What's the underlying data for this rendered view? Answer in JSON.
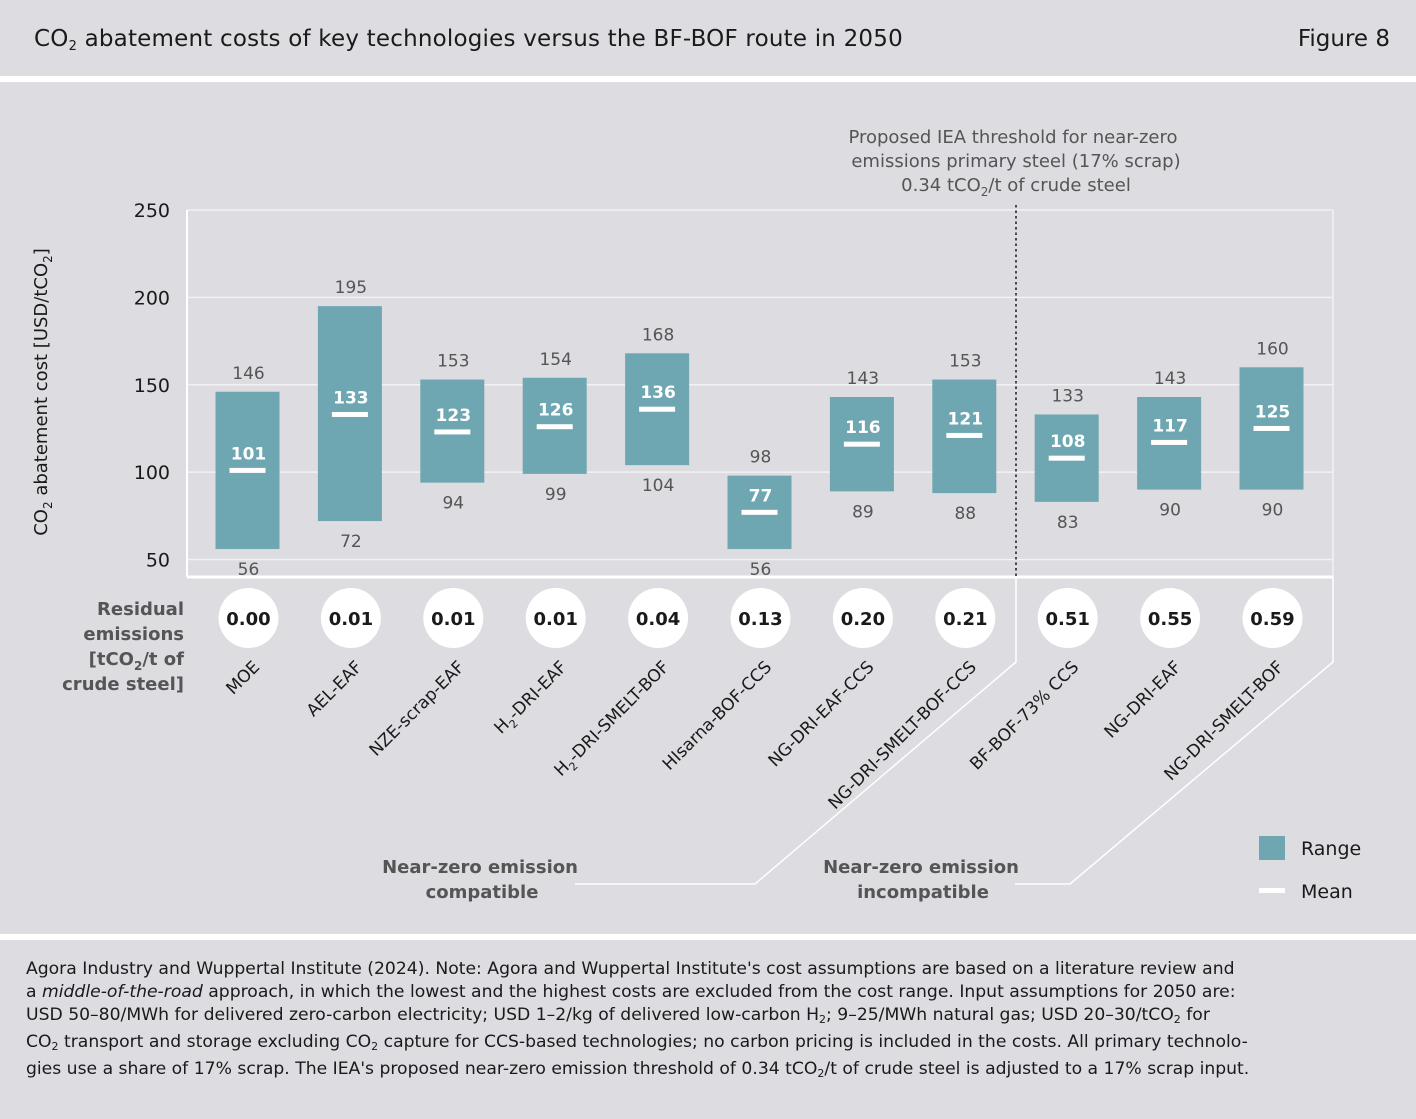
{
  "header": {
    "title_pre": "CO",
    "title_sub": "2",
    "title_post": " abatement costs of key technologies versus the BF-BOF route in 2050",
    "figure_label": "Figure 8"
  },
  "chart_data": {
    "type": "bar",
    "ylabel_pre": "CO",
    "ylabel_sub": "2",
    "ylabel_post": " abatement cost [USD/tCO",
    "ylabel_sub2": "2",
    "ylabel_end": "]",
    "ylim": [
      40,
      250
    ],
    "yticks": [
      50,
      100,
      150,
      200,
      250
    ],
    "grid": true,
    "categories": [
      "MOE",
      "AEL-EAF",
      "NZE-scrap-EAF",
      "H2-DRI-EAF",
      "H2-DRI-SMELT-BOF",
      "HIsarna-BOF-CCS",
      "NG-DRI-EAF-CCS",
      "NG-DRI-SMELT-BOF-CCS",
      "BF-BOF-73% CCS",
      "NG-DRI-EAF",
      "NG-DRI-SMELT-BOF"
    ],
    "category_labels": [
      {
        "pre": "MOE",
        "sub": "",
        "post": ""
      },
      {
        "pre": "AEL-EAF",
        "sub": "",
        "post": ""
      },
      {
        "pre": "NZE-scrap-EAF",
        "sub": "",
        "post": ""
      },
      {
        "pre": "H",
        "sub": "2",
        "post": "-DRI-EAF"
      },
      {
        "pre": "H",
        "sub": "2",
        "post": "-DRI-SMELT-BOF"
      },
      {
        "pre": "HIsarna-BOF-CCS",
        "sub": "",
        "post": ""
      },
      {
        "pre": "NG-DRI-EAF-CCS",
        "sub": "",
        "post": ""
      },
      {
        "pre": "NG-DRI-SMELT-BOF-CCS",
        "sub": "",
        "post": ""
      },
      {
        "pre": "BF-BOF-73% CCS",
        "sub": "",
        "post": ""
      },
      {
        "pre": "NG-DRI-EAF",
        "sub": "",
        "post": ""
      },
      {
        "pre": "NG-DRI-SMELT-BOF",
        "sub": "",
        "post": ""
      }
    ],
    "series": [
      {
        "name": "Range",
        "low": [
          56,
          72,
          94,
          99,
          104,
          56,
          89,
          88,
          83,
          90,
          90
        ],
        "high": [
          146,
          195,
          153,
          154,
          168,
          98,
          143,
          153,
          133,
          143,
          160
        ]
      },
      {
        "name": "Mean",
        "values": [
          101,
          133,
          123,
          126,
          136,
          77,
          116,
          121,
          108,
          117,
          125
        ]
      }
    ],
    "residual_emissions": [
      "0.00",
      "0.01",
      "0.01",
      "0.01",
      "0.04",
      "0.13",
      "0.20",
      "0.21",
      "0.51",
      "0.55",
      "0.59"
    ],
    "residual_label": [
      "Residual",
      "emissions",
      "[tCO",
      "2",
      "/t of",
      "crude steel]"
    ],
    "threshold_after_index": 7,
    "threshold_annotation": [
      "Proposed IEA threshold for near-zero",
      "emissions primary steel (17% scrap)",
      "0.34 tCO",
      "2",
      "/t of crude steel"
    ],
    "group_labels": {
      "compatible": [
        "Near-zero emission",
        "compatible"
      ],
      "incompatible": [
        "Near-zero emission",
        "incompatible"
      ]
    },
    "legend": {
      "range": "Range",
      "mean": "Mean",
      "position": "bottom-right"
    },
    "colors": {
      "bar": "#6ea7b2",
      "mean": "#ffffff",
      "grid": "#f2f2f4",
      "text_muted": "#555555"
    }
  },
  "footnote": {
    "line1": "Agora Industry and Wuppertal Institute (2024). Note: Agora and Wuppertal Institute's cost assumptions are based on a literature review and",
    "line2a": "a ",
    "line2i": "middle-of-the-road",
    "line2b": " approach, in which the lowest and the highest costs are excluded from the cost range. Input assumptions for 2050 are:",
    "line3a": "USD 50–80/MWh for delivered zero-carbon electricity; USD 1–2/kg of delivered low-carbon H",
    "line3s": "2",
    "line3b": "; 9–25/MWh natural gas; USD 20–30/tCO",
    "line3s2": "2",
    "line3c": " for",
    "line4a": "CO",
    "line4s": "2",
    "line4b": " transport and storage excluding CO",
    "line4s2": "2",
    "line4c": " capture for CCS-based technologies; no carbon pricing is included in the costs. All primary technolo-",
    "line5a": "gies use a share of 17% scrap. The IEA's proposed near-zero emission threshold of 0.34 tCO",
    "line5s": "2",
    "line5b": "/t of crude steel is adjusted to a 17% scrap input."
  }
}
